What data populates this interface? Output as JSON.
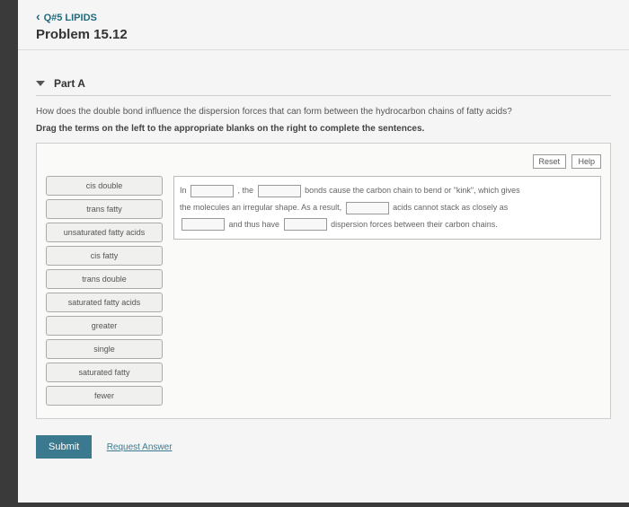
{
  "header": {
    "back_label": "Q#5 LIPIDS",
    "problem_label": "Problem 15.12"
  },
  "part": {
    "title": "Part A",
    "question": "How does the double bond influence the dispersion forces that can form between the hydrocarbon chains of fatty acids?",
    "instruction": "Drag the terms on the left to the appropriate blanks on the right to complete the sentences."
  },
  "buttons": {
    "reset": "Reset",
    "help": "Help",
    "submit": "Submit",
    "request": "Request Answer"
  },
  "terms": [
    "cis double",
    "trans fatty",
    "unsaturated fatty acids",
    "cis fatty",
    "trans double",
    "saturated fatty acids",
    "greater",
    "single",
    "saturated fatty",
    "fewer"
  ],
  "sentence": {
    "s1a": "In",
    "s1b": ", the",
    "s1c": "bonds cause the carbon chain to bend or \"kink\", which gives",
    "s2a": "the molecules an irregular shape. As a result,",
    "s2b": "acids cannot stack as closely as",
    "s3a": "and thus have",
    "s3b": "dispersion forces between their carbon chains."
  },
  "colors": {
    "accent": "#3b7a8e",
    "link": "#1e6b7e",
    "page_bg": "#f5f5f5",
    "workbox_bg": "#fafaf8",
    "term_bg": "#f0f0ee"
  }
}
